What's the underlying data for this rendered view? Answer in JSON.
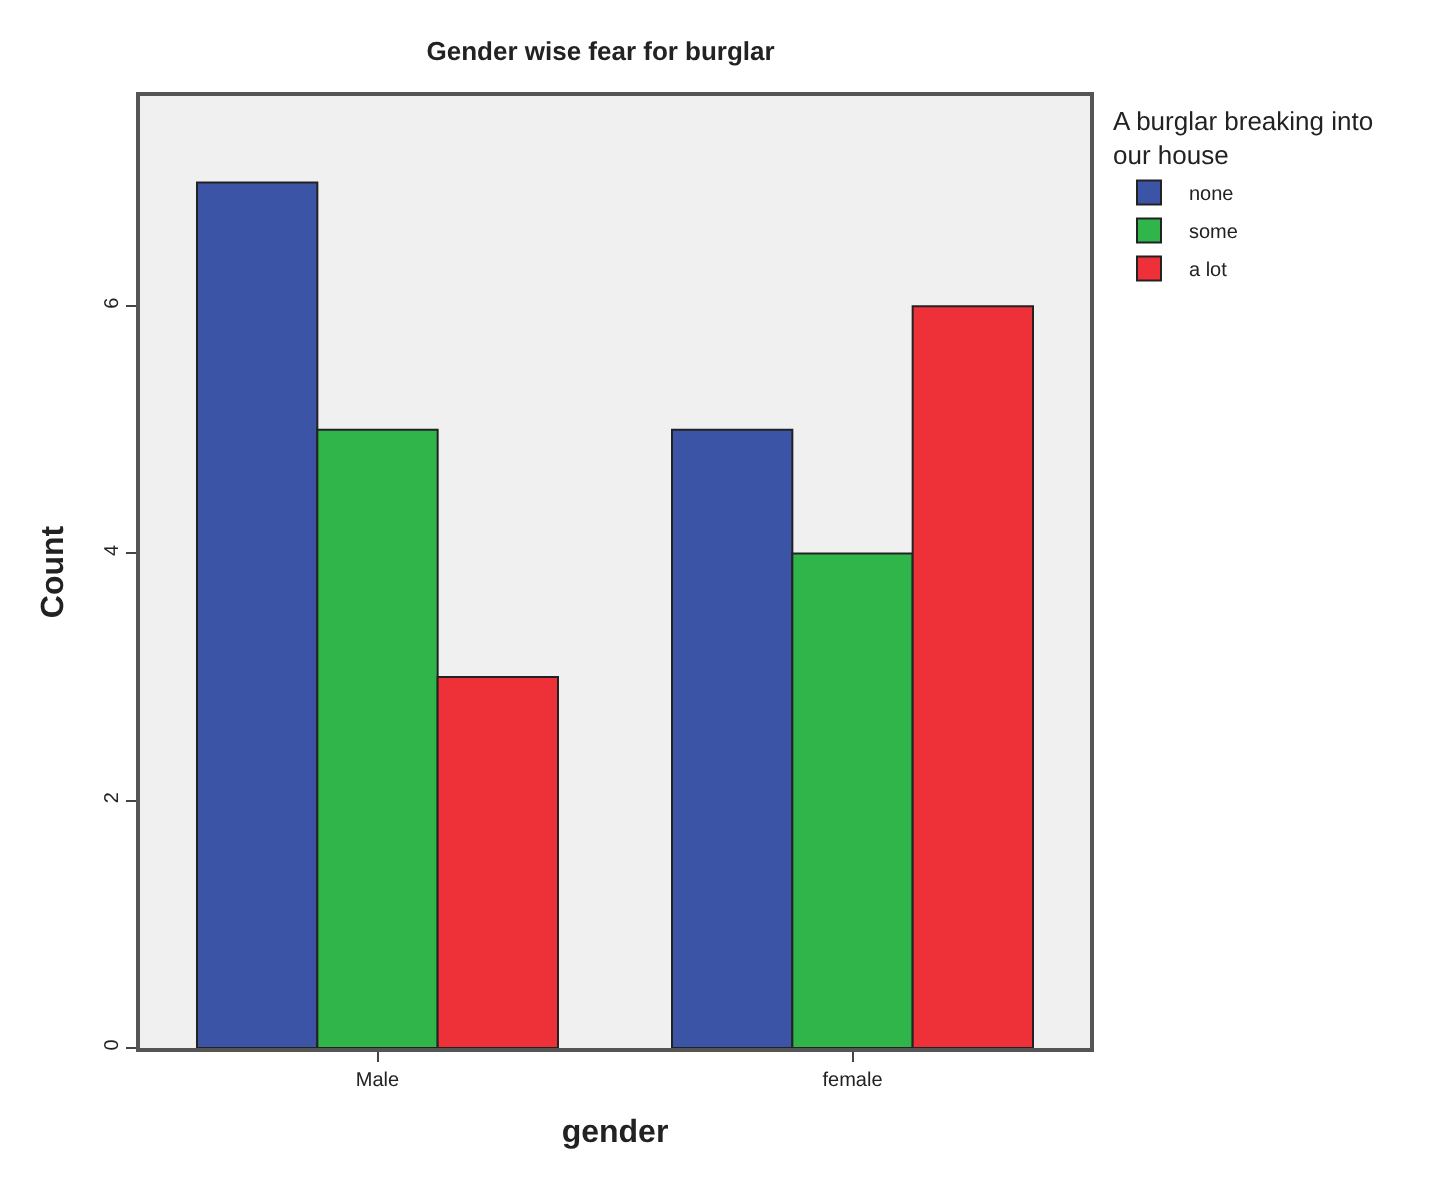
{
  "chart_data": {
    "type": "bar",
    "title": "Gender wise fear for burglar",
    "xlabel": "gender",
    "ylabel": "Count",
    "legend_title": "A burglar breaking into our house",
    "categories": [
      "Male",
      "female"
    ],
    "series": [
      {
        "name": "none",
        "color": "#3c54a6",
        "values": [
          7,
          5
        ]
      },
      {
        "name": "some",
        "color": "#2fb54a",
        "values": [
          5,
          4
        ]
      },
      {
        "name": "a lot",
        "color": "#ee3038",
        "values": [
          3,
          6
        ]
      }
    ],
    "ylim": [
      0,
      7.7
    ],
    "yticks": [
      0,
      2,
      4,
      6
    ],
    "grid": false,
    "legend": "top right"
  }
}
